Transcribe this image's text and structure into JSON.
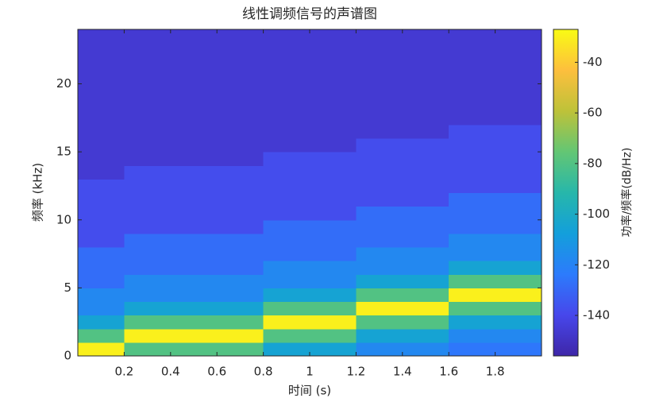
{
  "chart_data": {
    "type": "heatmap",
    "title": "线性调频信号的声谱图",
    "x_label": "时间 (s)",
    "y_label": "频率 (kHz)",
    "colorbar_label": "功率/频率(dB/Hz)",
    "colormap": "parula",
    "x": [
      0.1,
      0.3,
      0.5,
      0.7,
      0.9,
      1.1,
      1.3,
      1.5,
      1.7,
      1.9
    ],
    "y": [
      0.5,
      1.5,
      2.5,
      3.5,
      4.5,
      5.5,
      6.5,
      7.5,
      8.5,
      9.5,
      10.5,
      11.5,
      12.5,
      13.5,
      14.5,
      15.5,
      16.5,
      17.5,
      18.5,
      19.5,
      20.5,
      21.5,
      22.5,
      23.5
    ],
    "z": [
      [
        -30,
        -80,
        -105,
        -118,
        -118,
        -128,
        -128,
        -128,
        -138,
        -138,
        -138,
        -138,
        -138,
        -146,
        -146,
        -146,
        -146,
        -146,
        -146,
        -146,
        -146,
        -146,
        -146,
        -146
      ],
      [
        -80,
        -30,
        -80,
        -105,
        -118,
        -118,
        -128,
        -128,
        -128,
        -138,
        -138,
        -138,
        -138,
        -138,
        -146,
        -146,
        -146,
        -146,
        -146,
        -146,
        -146,
        -146,
        -146,
        -146
      ],
      [
        -80,
        -30,
        -80,
        -105,
        -118,
        -118,
        -128,
        -128,
        -128,
        -138,
        -138,
        -138,
        -138,
        -138,
        -146,
        -146,
        -146,
        -146,
        -146,
        -146,
        -146,
        -146,
        -146,
        -146
      ],
      [
        -80,
        -30,
        -80,
        -105,
        -118,
        -118,
        -128,
        -128,
        -128,
        -138,
        -138,
        -138,
        -138,
        -138,
        -146,
        -146,
        -146,
        -146,
        -146,
        -146,
        -146,
        -146,
        -146,
        -146
      ],
      [
        -105,
        -80,
        -30,
        -80,
        -105,
        -118,
        -118,
        -128,
        -128,
        -128,
        -138,
        -138,
        -138,
        -138,
        -138,
        -146,
        -146,
        -146,
        -146,
        -146,
        -146,
        -146,
        -146,
        -146
      ],
      [
        -105,
        -80,
        -30,
        -80,
        -105,
        -118,
        -118,
        -128,
        -128,
        -128,
        -138,
        -138,
        -138,
        -138,
        -138,
        -146,
        -146,
        -146,
        -146,
        -146,
        -146,
        -146,
        -146,
        -146
      ],
      [
        -118,
        -105,
        -80,
        -30,
        -80,
        -105,
        -118,
        -118,
        -128,
        -128,
        -128,
        -138,
        -138,
        -138,
        -138,
        -138,
        -146,
        -146,
        -146,
        -146,
        -146,
        -146,
        -146,
        -146
      ],
      [
        -118,
        -105,
        -80,
        -30,
        -80,
        -105,
        -118,
        -118,
        -128,
        -128,
        -128,
        -138,
        -138,
        -138,
        -138,
        -138,
        -146,
        -146,
        -146,
        -146,
        -146,
        -146,
        -146,
        -146
      ],
      [
        -125,
        -118,
        -105,
        -80,
        -30,
        -80,
        -105,
        -118,
        -118,
        -128,
        -128,
        -128,
        -138,
        -138,
        -138,
        -138,
        -138,
        -146,
        -146,
        -146,
        -146,
        -146,
        -146,
        -146
      ],
      [
        -125,
        -118,
        -105,
        -80,
        -30,
        -80,
        -105,
        -118,
        -118,
        -128,
        -128,
        -128,
        -138,
        -138,
        -138,
        -138,
        -138,
        -146,
        -146,
        -146,
        -146,
        -146,
        -146,
        -146
      ]
    ],
    "xlim": [
      0,
      2
    ],
    "xticks": [
      0.2,
      0.4,
      0.6,
      0.8,
      1,
      1.2,
      1.4,
      1.6,
      1.8
    ],
    "ylim": [
      0,
      24
    ],
    "yticks": [
      0,
      5,
      10,
      15,
      20
    ],
    "clim": [
      -156,
      -27
    ],
    "cticks": [
      -140,
      -120,
      -100,
      -80,
      -60,
      -40
    ]
  }
}
